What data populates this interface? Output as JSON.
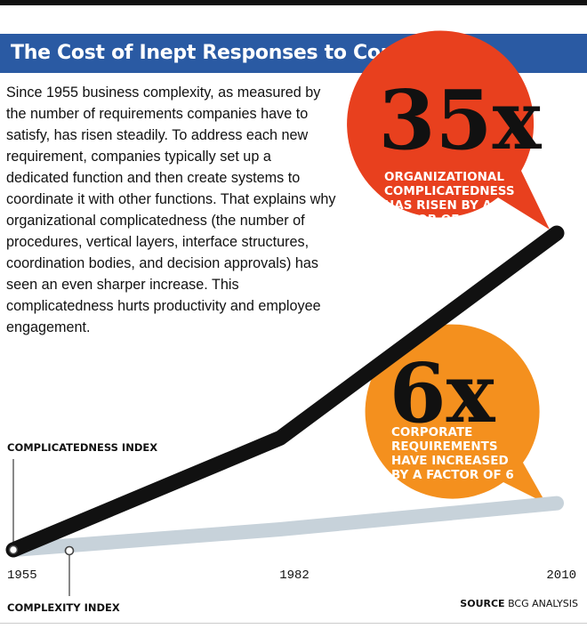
{
  "title": "The Cost of Inept Responses to Complexity",
  "intro": "Since 1955 business complexity, as measured by the number of requirements companies have to satisfy, has risen steadily. To address each new requirement, companies typically set up a dedicated function and then create systems to coordinate it with other functions. That explains why organizational complicatedness (the number of procedures, vertical layers, interface structures, coordination bodies, and decision approvals) has seen an even sharper increase. This complicatedness hurts productivity and employee engagement.",
  "callouts": {
    "complicatedness": {
      "big": "35x",
      "lines": [
        "ORGANIZATIONAL",
        "COMPLICATEDNESS",
        "HAS RISEN BY A",
        "FACTOR OF 35"
      ],
      "color": "#e8401e"
    },
    "complexity": {
      "big": "6x",
      "lines": [
        "CORPORATE",
        "REQUIREMENTS",
        "HAVE INCREASED",
        "BY A FACTOR OF 6"
      ],
      "color": "#f4901e"
    }
  },
  "source_label": "SOURCE",
  "source_text": "BCG ANALYSIS",
  "colors": {
    "title_bar": "#2a5aa3",
    "complicatedness_line": "#111111",
    "complexity_line": "#c7d2da"
  },
  "chart_data": {
    "type": "line",
    "x": [
      1955,
      1982,
      2010
    ],
    "tick_labels": [
      "1955",
      "1982",
      "2010"
    ],
    "series": [
      {
        "name": "COMPLICATEDNESS INDEX",
        "values": [
          1,
          13,
          35
        ]
      },
      {
        "name": "COMPLEXITY INDEX",
        "values": [
          1,
          3.2,
          6
        ]
      }
    ],
    "xlim": [
      1955,
      2010
    ],
    "ylim": [
      1,
      35
    ],
    "grid": false
  }
}
